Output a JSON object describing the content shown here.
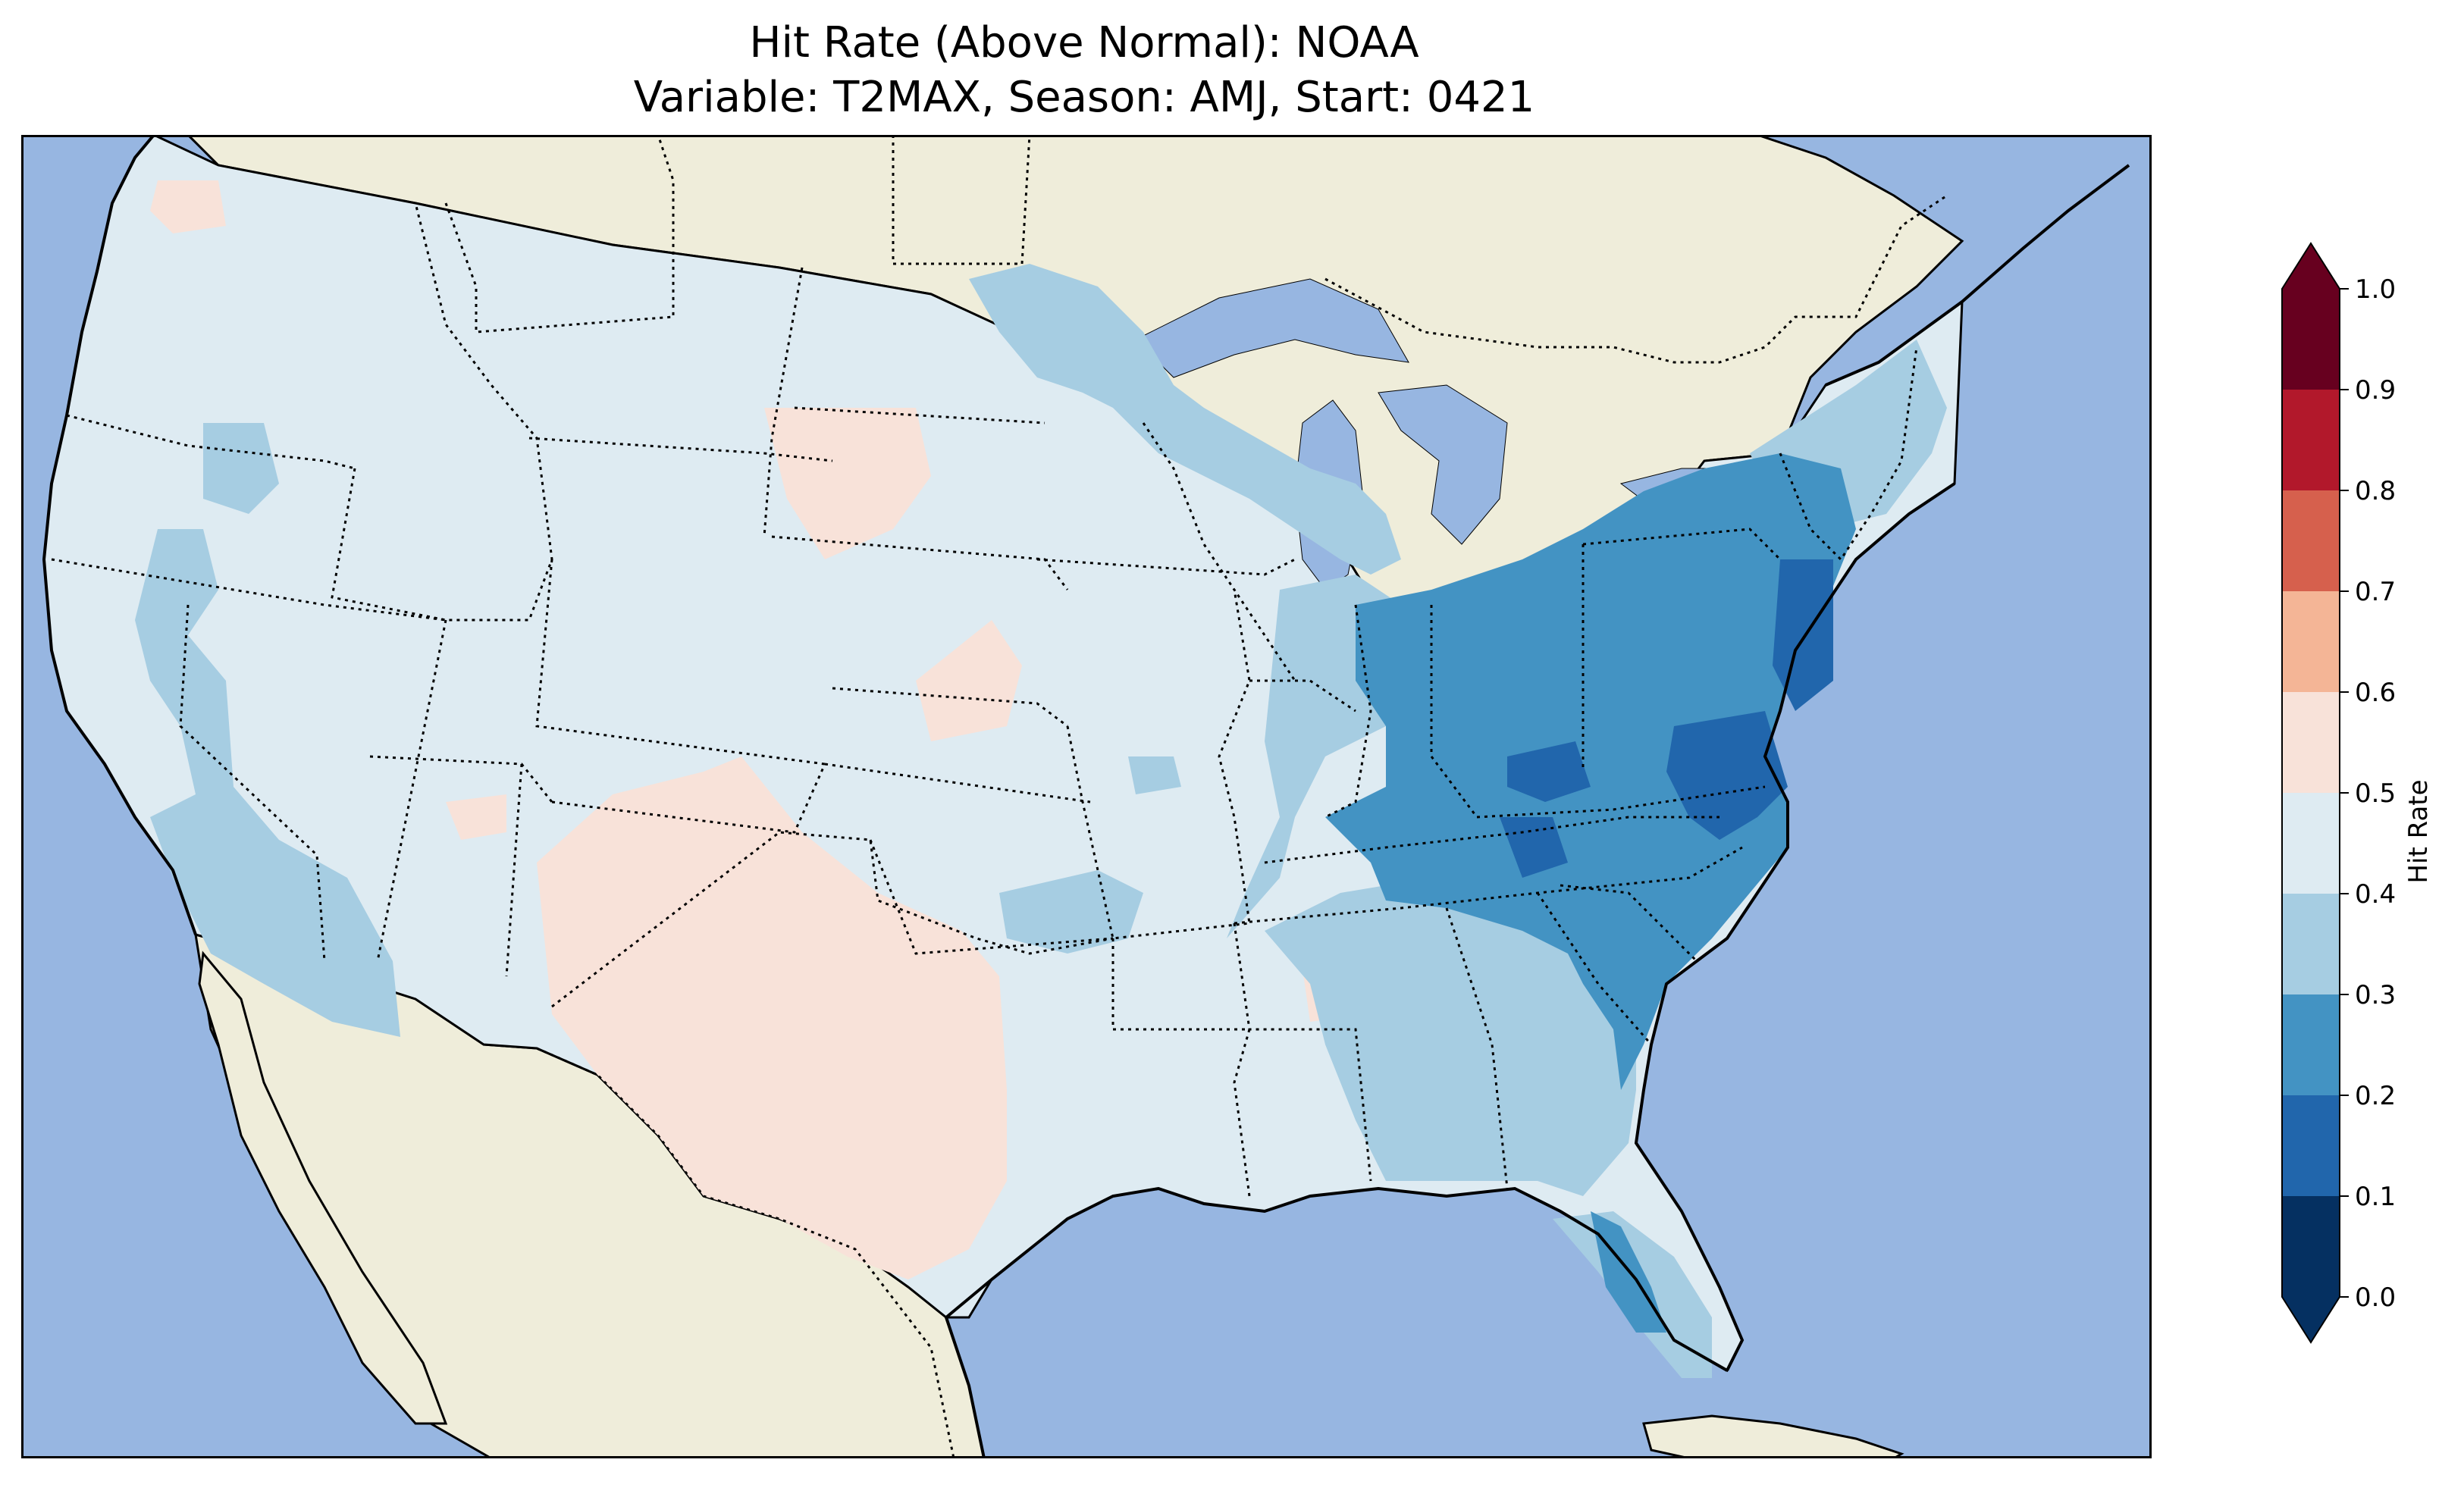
{
  "title": {
    "line1": "Hit Rate (Above Normal): NOAA",
    "line2": "Variable: T2MAX, Season: AMJ, Start: 0421"
  },
  "colorbar": {
    "label": "Hit Rate",
    "range": [
      0.0,
      1.0
    ],
    "extend": "both",
    "ticks": [
      "0.0",
      "0.1",
      "0.2",
      "0.3",
      "0.4",
      "0.5",
      "0.6",
      "0.7",
      "0.8",
      "0.9",
      "1.0"
    ],
    "bins": [
      {
        "range": [
          0.0,
          0.1
        ],
        "color": "#053061"
      },
      {
        "range": [
          0.1,
          0.2
        ],
        "color": "#2166ac"
      },
      {
        "range": [
          0.2,
          0.3
        ],
        "color": "#4393c3"
      },
      {
        "range": [
          0.3,
          0.4
        ],
        "color": "#a6cde2"
      },
      {
        "range": [
          0.4,
          0.5
        ],
        "color": "#deebf2"
      },
      {
        "range": [
          0.5,
          0.6
        ],
        "color": "#f8e2d9"
      },
      {
        "range": [
          0.6,
          0.7
        ],
        "color": "#f4b596"
      },
      {
        "range": [
          0.7,
          0.8
        ],
        "color": "#d6604d"
      },
      {
        "range": [
          0.8,
          0.9
        ],
        "color": "#b2182b"
      },
      {
        "range": [
          0.9,
          1.0
        ],
        "color": "#67001f"
      }
    ],
    "under_color": "#053061",
    "over_color": "#67001f"
  },
  "map": {
    "projection": "Lambert Conformal",
    "ocean_color": "#97b6e1",
    "land_color": "#efedda",
    "lake_color": "#97b6e1",
    "states_borders": "dotted",
    "coastlines": "solid"
  }
}
